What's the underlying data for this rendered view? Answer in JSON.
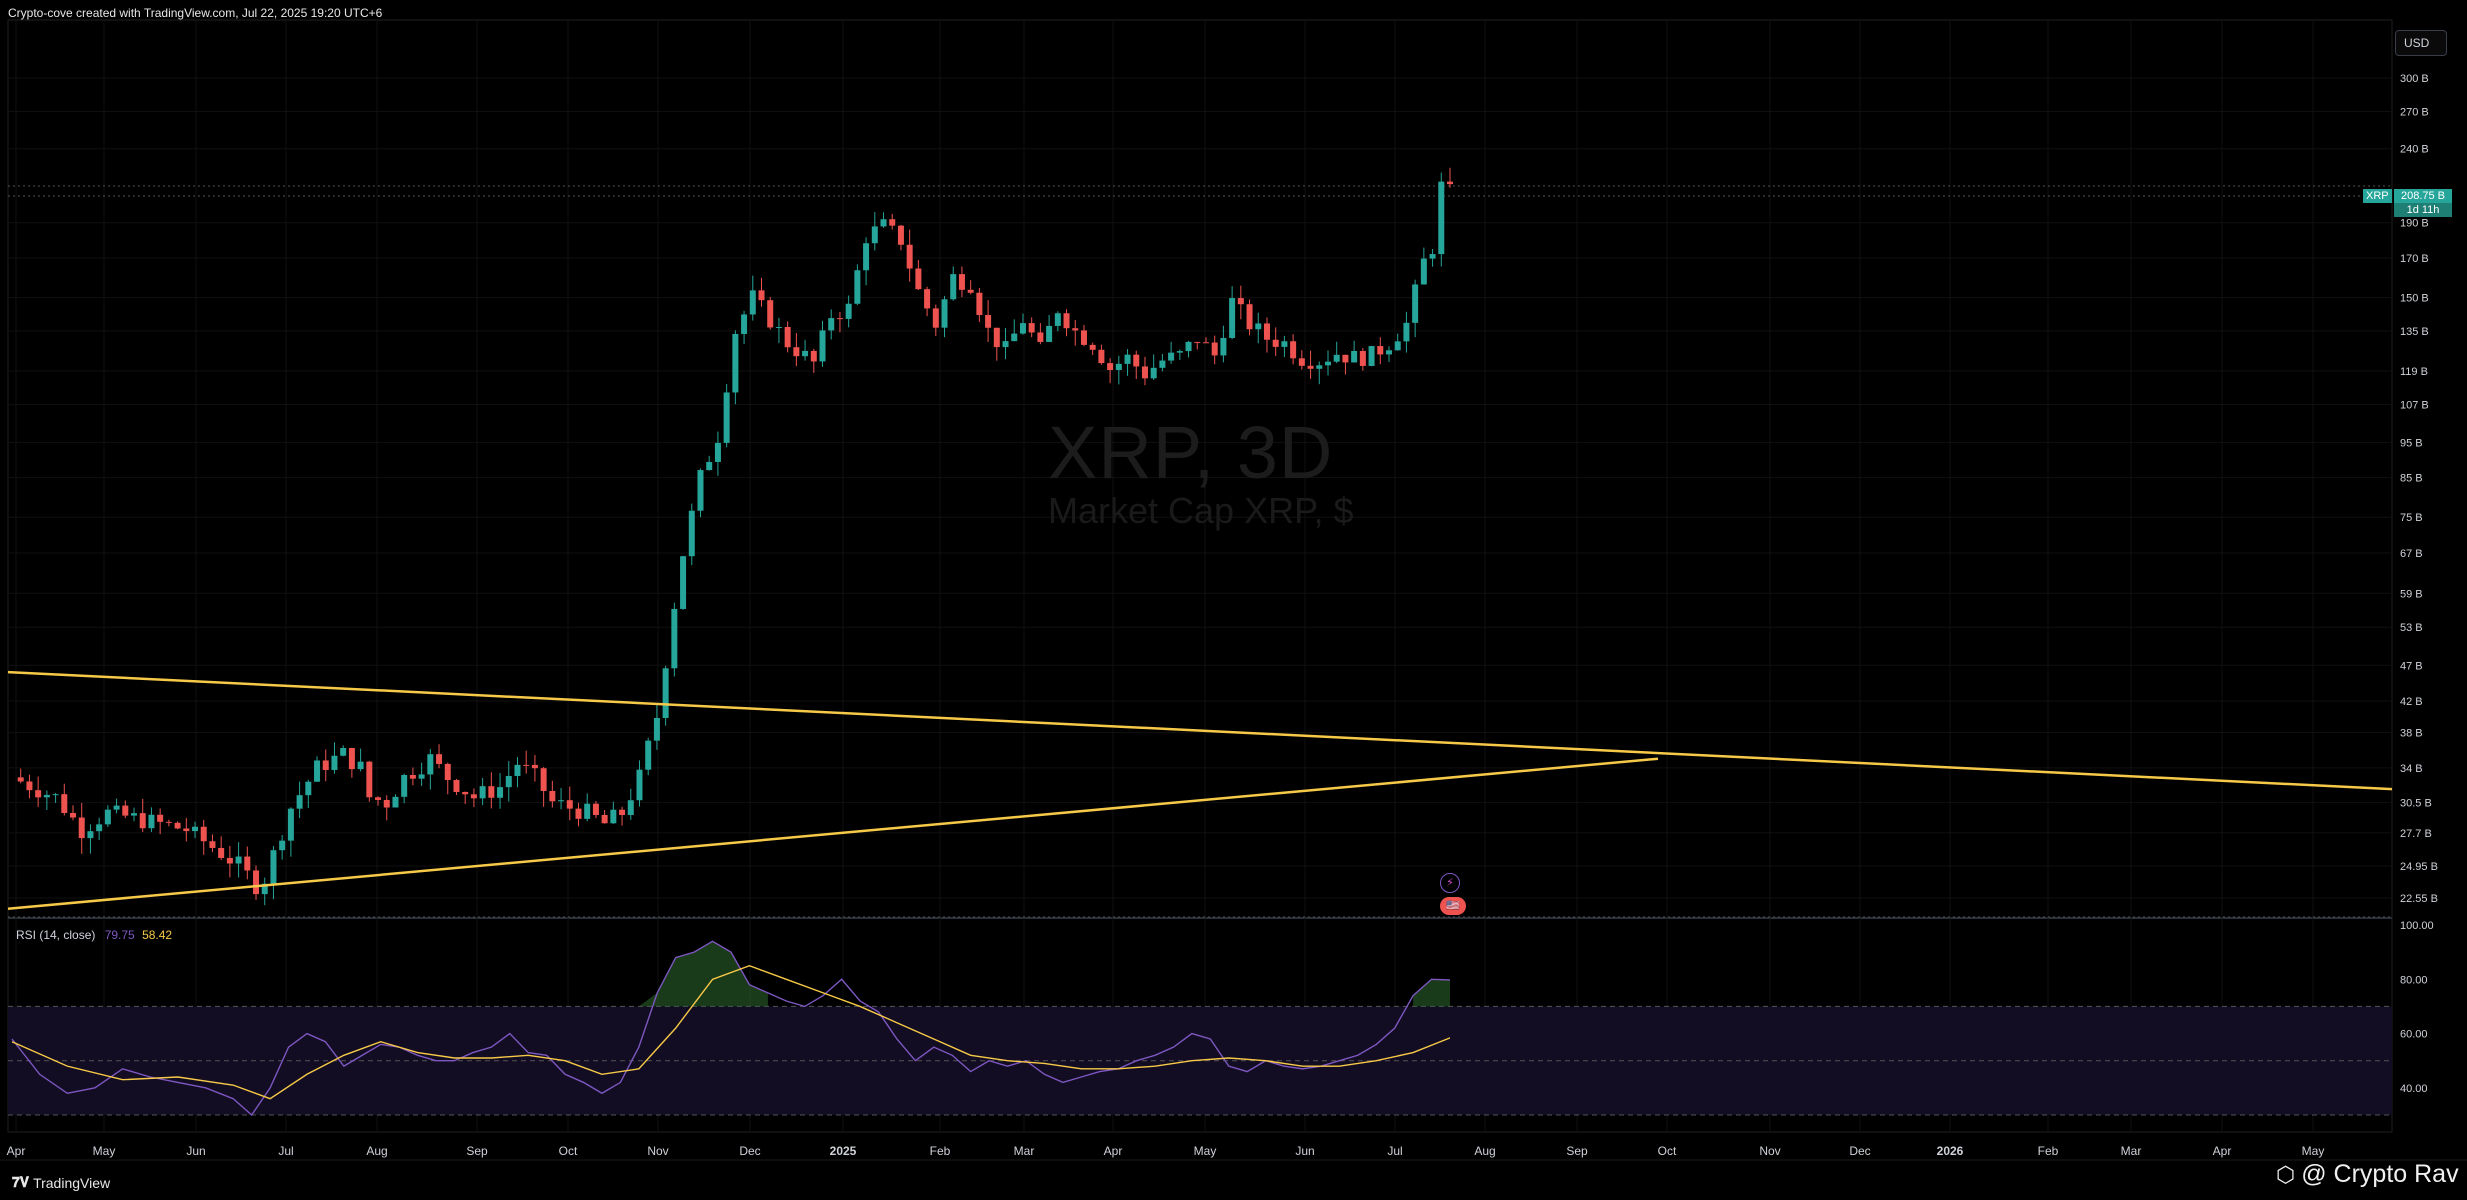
{
  "header": {
    "text": "Crypto-cove created with TradingView.com, Jul 22, 2025 19:20 UTC+6"
  },
  "currency_button": "USD",
  "watermark": {
    "symbol": "XRP, 3D",
    "subtitle": "Market Cap XRP, $"
  },
  "price_tag": {
    "symbol": "XRP",
    "value": "208.75 B",
    "countdown": "1d 11h"
  },
  "rsi": {
    "label": "RSI (14, close)",
    "value": "79.75",
    "ma_value": "58.42"
  },
  "branding": {
    "logo": "𝟕𝐕",
    "name": "TradingView"
  },
  "author": {
    "text": "@ Crypto Rav",
    "icon": "binance-icon"
  },
  "colors": {
    "up": "#26a69a",
    "down": "#ef5350",
    "trendline": "#f7c948",
    "rsi": "#7e57c2",
    "rsi_ma": "#f7c948"
  },
  "chart_data": [
    {
      "type": "candlestick",
      "series_name": "Market Cap XRP, $",
      "timeframe": "3D",
      "y_scale": "log",
      "y_ticks": [
        "300 B",
        "270 B",
        "240 B",
        "190 B",
        "170 B",
        "150 B",
        "135 B",
        "119 B",
        "107 B",
        "95 B",
        "85 B",
        "75 B",
        "67 B",
        "59 B",
        "53 B",
        "47 B",
        "42 B",
        "38 B",
        "34 B",
        "30.5 B",
        "27.7 B",
        "24.95 B",
        "22.55 B"
      ],
      "y_tick_values": [
        300,
        270,
        240,
        190,
        170,
        150,
        135,
        119,
        107,
        95,
        85,
        75,
        67,
        59,
        53,
        47,
        42,
        38,
        34,
        30.5,
        27.7,
        24.95,
        22.55
      ],
      "x_ticks": [
        "Apr",
        "May",
        "Jun",
        "Jul",
        "Aug",
        "Sep",
        "Oct",
        "Nov",
        "Dec",
        "2025",
        "Feb",
        "Mar",
        "Apr",
        "May",
        "Jun",
        "Jul",
        "Aug",
        "Sep",
        "Oct",
        "Nov",
        "Dec",
        "2026",
        "Feb",
        "Mar",
        "Apr",
        "May"
      ],
      "close_path": [
        [
          0,
          33
        ],
        [
          5,
          31
        ],
        [
          8,
          28
        ],
        [
          11,
          29.5
        ],
        [
          14,
          29
        ],
        [
          17,
          28.5
        ],
        [
          20,
          28
        ],
        [
          24,
          26
        ],
        [
          26,
          25
        ],
        [
          28,
          23.5
        ],
        [
          29,
          24
        ],
        [
          32,
          30
        ],
        [
          35,
          34
        ],
        [
          38,
          35.5
        ],
        [
          40,
          34
        ],
        [
          41,
          31
        ],
        [
          43,
          30.5
        ],
        [
          45,
          33
        ],
        [
          48,
          35
        ],
        [
          50,
          33
        ],
        [
          53,
          31
        ],
        [
          56,
          32
        ],
        [
          58,
          34.5
        ],
        [
          60,
          33
        ],
        [
          62,
          30.5
        ],
        [
          64,
          30
        ],
        [
          66,
          29.5
        ],
        [
          68,
          28.5
        ],
        [
          70,
          29.5
        ],
        [
          72,
          33
        ],
        [
          74,
          40
        ],
        [
          76,
          57
        ],
        [
          77,
          67
        ],
        [
          79,
          85
        ],
        [
          81,
          97
        ],
        [
          83,
          135
        ],
        [
          85,
          150
        ],
        [
          87,
          140
        ],
        [
          89,
          130
        ],
        [
          92,
          122
        ],
        [
          94,
          142
        ],
        [
          96,
          145
        ],
        [
          98,
          182
        ],
        [
          100,
          188
        ],
        [
          102,
          180
        ],
        [
          104,
          153
        ],
        [
          106,
          138
        ],
        [
          108,
          160
        ],
        [
          110,
          157
        ],
        [
          112,
          135
        ],
        [
          114,
          127
        ],
        [
          116,
          140
        ],
        [
          118,
          127
        ],
        [
          120,
          145
        ],
        [
          122,
          135
        ],
        [
          124,
          130
        ],
        [
          126,
          120
        ],
        [
          128,
          124
        ],
        [
          130,
          118
        ],
        [
          132,
          123
        ],
        [
          134,
          125
        ],
        [
          136,
          132
        ],
        [
          138,
          125
        ],
        [
          140,
          148
        ],
        [
          142,
          138
        ],
        [
          144,
          132
        ],
        [
          146,
          130
        ],
        [
          148,
          124
        ],
        [
          150,
          123
        ],
        [
          152,
          126
        ],
        [
          154,
          124
        ],
        [
          156,
          125
        ],
        [
          158,
          130
        ],
        [
          160,
          138
        ],
        [
          162,
          168
        ],
        [
          163,
          176
        ],
        [
          164,
          213
        ],
        [
          165,
          208.75
        ]
      ],
      "trendlines": [
        {
          "name": "upper",
          "from": [
            "Apr 2024",
            46
          ],
          "to": [
            "Jan 2026",
            31.8
          ]
        },
        {
          "name": "lower",
          "from": [
            "Apr 2024",
            21.8
          ],
          "to": [
            "Sep 2025",
            35
          ]
        }
      ],
      "last_value": "208.75 B"
    },
    {
      "type": "line",
      "name": "RSI (14, close)",
      "y_ticks": [
        "100.00",
        "80.00",
        "60.00",
        "40.00"
      ],
      "bands": {
        "upper": 70,
        "middle": 50,
        "lower": 30
      },
      "rsi_path": [
        [
          0,
          58
        ],
        [
          3,
          45
        ],
        [
          6,
          38
        ],
        [
          9,
          40
        ],
        [
          12,
          47
        ],
        [
          15,
          44
        ],
        [
          18,
          42
        ],
        [
          21,
          40
        ],
        [
          24,
          36
        ],
        [
          26,
          30
        ],
        [
          28,
          40
        ],
        [
          30,
          55
        ],
        [
          32,
          60
        ],
        [
          34,
          57
        ],
        [
          36,
          48
        ],
        [
          38,
          52
        ],
        [
          40,
          56
        ],
        [
          42,
          55
        ],
        [
          44,
          52
        ],
        [
          46,
          50
        ],
        [
          48,
          50
        ],
        [
          50,
          53
        ],
        [
          52,
          55
        ],
        [
          54,
          60
        ],
        [
          56,
          53
        ],
        [
          58,
          52
        ],
        [
          60,
          45
        ],
        [
          62,
          42
        ],
        [
          64,
          38
        ],
        [
          66,
          42
        ],
        [
          68,
          55
        ],
        [
          70,
          75
        ],
        [
          72,
          88
        ],
        [
          74,
          90
        ],
        [
          76,
          94
        ],
        [
          78,
          90
        ],
        [
          80,
          78
        ],
        [
          82,
          75
        ],
        [
          84,
          72
        ],
        [
          86,
          70
        ],
        [
          88,
          74
        ],
        [
          90,
          80
        ],
        [
          92,
          72
        ],
        [
          94,
          68
        ],
        [
          96,
          58
        ],
        [
          98,
          50
        ],
        [
          100,
          55
        ],
        [
          102,
          52
        ],
        [
          104,
          46
        ],
        [
          106,
          50
        ],
        [
          108,
          48
        ],
        [
          110,
          50
        ],
        [
          112,
          45
        ],
        [
          114,
          42
        ],
        [
          116,
          44
        ],
        [
          118,
          46
        ],
        [
          120,
          47
        ],
        [
          122,
          50
        ],
        [
          124,
          52
        ],
        [
          126,
          55
        ],
        [
          128,
          60
        ],
        [
          130,
          58
        ],
        [
          132,
          48
        ],
        [
          134,
          46
        ],
        [
          136,
          50
        ],
        [
          138,
          48
        ],
        [
          140,
          47
        ],
        [
          142,
          48
        ],
        [
          144,
          50
        ],
        [
          146,
          52
        ],
        [
          148,
          56
        ],
        [
          150,
          62
        ],
        [
          152,
          74
        ],
        [
          154,
          80
        ],
        [
          156,
          79.75
        ]
      ],
      "ma_path": [
        [
          0,
          57
        ],
        [
          6,
          48
        ],
        [
          12,
          43
        ],
        [
          18,
          44
        ],
        [
          24,
          41
        ],
        [
          28,
          36
        ],
        [
          32,
          45
        ],
        [
          36,
          52
        ],
        [
          40,
          57
        ],
        [
          44,
          53
        ],
        [
          48,
          51
        ],
        [
          52,
          51
        ],
        [
          56,
          52
        ],
        [
          60,
          50
        ],
        [
          64,
          45
        ],
        [
          68,
          47
        ],
        [
          72,
          62
        ],
        [
          76,
          80
        ],
        [
          80,
          85
        ],
        [
          84,
          80
        ],
        [
          88,
          75
        ],
        [
          92,
          70
        ],
        [
          96,
          64
        ],
        [
          100,
          58
        ],
        [
          104,
          52
        ],
        [
          108,
          50
        ],
        [
          112,
          49
        ],
        [
          116,
          47
        ],
        [
          120,
          47
        ],
        [
          124,
          48
        ],
        [
          128,
          50
        ],
        [
          132,
          51
        ],
        [
          136,
          50
        ],
        [
          140,
          48
        ],
        [
          144,
          48
        ],
        [
          148,
          50
        ],
        [
          152,
          53
        ],
        [
          156,
          58.42
        ]
      ]
    }
  ]
}
